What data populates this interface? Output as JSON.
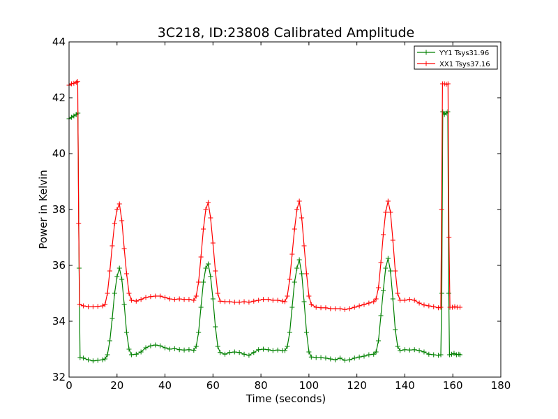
{
  "chart_data": {
    "type": "line",
    "title": "3C218, ID:23808 Calibrated Amplitude",
    "xlabel": "Time (seconds)",
    "ylabel": "Power in Kelvin",
    "xlim": [
      0,
      180
    ],
    "ylim": [
      32,
      44
    ],
    "xticks": [
      0,
      20,
      40,
      60,
      80,
      100,
      120,
      140,
      160,
      180
    ],
    "yticks": [
      32,
      34,
      36,
      38,
      40,
      42,
      44
    ],
    "grid": false,
    "legend_position": "top-right",
    "series": [
      {
        "name": "YY1 Tsys31.96",
        "color": "#008000",
        "segments": [
          [
            [
              0,
              41.25
            ],
            [
              1,
              41.3
            ],
            [
              2,
              41.35
            ],
            [
              3,
              41.4
            ],
            [
              3.7,
              41.45
            ],
            [
              4.2,
              35.9
            ],
            [
              4.6,
              32.7
            ],
            [
              6,
              32.68
            ],
            [
              8,
              32.62
            ],
            [
              10,
              32.58
            ],
            [
              12,
              32.6
            ],
            [
              14,
              32.62
            ],
            [
              15,
              32.65
            ],
            [
              16,
              32.8
            ],
            [
              17,
              33.3
            ],
            [
              18,
              34.1
            ],
            [
              19,
              35.0
            ],
            [
              20,
              35.6
            ],
            [
              21,
              35.9
            ],
            [
              22,
              35.5
            ],
            [
              23,
              34.6
            ],
            [
              24,
              33.6
            ],
            [
              25,
              33.0
            ],
            [
              26,
              32.8
            ],
            [
              28,
              32.82
            ],
            [
              30,
              32.9
            ],
            [
              32,
              33.05
            ],
            [
              34,
              33.12
            ],
            [
              36,
              33.15
            ],
            [
              38,
              33.12
            ],
            [
              40,
              33.05
            ],
            [
              42,
              33.0
            ],
            [
              44,
              33.02
            ],
            [
              46,
              32.98
            ],
            [
              48,
              32.97
            ],
            [
              50,
              32.98
            ],
            [
              52,
              32.96
            ],
            [
              53,
              33.1
            ],
            [
              54,
              33.6
            ],
            [
              55,
              34.5
            ],
            [
              56,
              35.4
            ],
            [
              57,
              35.9
            ],
            [
              58,
              36.05
            ],
            [
              59,
              35.6
            ],
            [
              60,
              34.8
            ],
            [
              61,
              33.8
            ],
            [
              62,
              33.1
            ],
            [
              63,
              32.88
            ],
            [
              65,
              32.82
            ],
            [
              67,
              32.88
            ],
            [
              69,
              32.9
            ],
            [
              71,
              32.88
            ],
            [
              73,
              32.82
            ],
            [
              75,
              32.78
            ],
            [
              77,
              32.88
            ],
            [
              79,
              32.98
            ],
            [
              81,
              33.0
            ],
            [
              83,
              32.98
            ],
            [
              85,
              32.95
            ],
            [
              87,
              32.97
            ],
            [
              89,
              32.95
            ],
            [
              90,
              32.95
            ],
            [
              91,
              33.1
            ],
            [
              92,
              33.6
            ],
            [
              93,
              34.5
            ],
            [
              94,
              35.4
            ],
            [
              95,
              35.9
            ],
            [
              96,
              36.2
            ],
            [
              97,
              35.7
            ],
            [
              98,
              34.7
            ],
            [
              99,
              33.6
            ],
            [
              100,
              32.9
            ],
            [
              101,
              32.72
            ],
            [
              103,
              32.7
            ],
            [
              105,
              32.7
            ],
            [
              107,
              32.68
            ],
            [
              109,
              32.65
            ],
            [
              111,
              32.62
            ],
            [
              113,
              32.68
            ],
            [
              115,
              32.6
            ],
            [
              117,
              32.62
            ],
            [
              119,
              32.68
            ],
            [
              121,
              32.72
            ],
            [
              123,
              32.75
            ],
            [
              125,
              32.8
            ],
            [
              127,
              32.82
            ],
            [
              128,
              32.9
            ],
            [
              129,
              33.3
            ],
            [
              130,
              34.2
            ],
            [
              131,
              35.1
            ],
            [
              132,
              35.9
            ],
            [
              133,
              36.25
            ],
            [
              134,
              35.8
            ],
            [
              135,
              34.8
            ],
            [
              136,
              33.7
            ],
            [
              137,
              33.1
            ],
            [
              138,
              32.95
            ],
            [
              140,
              32.98
            ],
            [
              142,
              32.97
            ],
            [
              144,
              32.98
            ],
            [
              146,
              32.95
            ],
            [
              148,
              32.9
            ],
            [
              150,
              32.82
            ],
            [
              152,
              32.8
            ],
            [
              154,
              32.78
            ],
            [
              155,
              32.8
            ],
            [
              155.4,
              35.0
            ],
            [
              155.8,
              41.5
            ],
            [
              156.5,
              41.4
            ],
            [
              157.3,
              41.45
            ],
            [
              157.9,
              41.5
            ],
            [
              158.3,
              35.0
            ],
            [
              158.6,
              32.8
            ],
            [
              159.5,
              32.82
            ],
            [
              160.5,
              32.85
            ],
            [
              161.5,
              32.8
            ],
            [
              162.5,
              32.82
            ],
            [
              163,
              32.8
            ]
          ]
        ]
      },
      {
        "name": "XX1 Tsys37.16",
        "color": "#ff0000",
        "segments": [
          [
            [
              0,
              42.45
            ],
            [
              1,
              42.5
            ],
            [
              2,
              42.52
            ],
            [
              3,
              42.55
            ],
            [
              3.6,
              42.58
            ],
            [
              4.0,
              37.5
            ],
            [
              4.4,
              34.6
            ],
            [
              6,
              34.55
            ],
            [
              8,
              34.52
            ],
            [
              10,
              34.52
            ],
            [
              12,
              34.53
            ],
            [
              14,
              34.55
            ],
            [
              15,
              34.6
            ],
            [
              16,
              35.0
            ],
            [
              17,
              35.8
            ],
            [
              18,
              36.7
            ],
            [
              19,
              37.5
            ],
            [
              20,
              38.0
            ],
            [
              21,
              38.2
            ],
            [
              22,
              37.6
            ],
            [
              23,
              36.6
            ],
            [
              24,
              35.7
            ],
            [
              25,
              35.0
            ],
            [
              26,
              34.75
            ],
            [
              28,
              34.72
            ],
            [
              30,
              34.78
            ],
            [
              32,
              34.85
            ],
            [
              34,
              34.88
            ],
            [
              36,
              34.9
            ],
            [
              38,
              34.9
            ],
            [
              40,
              34.85
            ],
            [
              42,
              34.8
            ],
            [
              44,
              34.78
            ],
            [
              46,
              34.8
            ],
            [
              48,
              34.78
            ],
            [
              50,
              34.78
            ],
            [
              52,
              34.75
            ],
            [
              53,
              34.9
            ],
            [
              54,
              35.4
            ],
            [
              55,
              36.3
            ],
            [
              56,
              37.3
            ],
            [
              57,
              38.0
            ],
            [
              58,
              38.25
            ],
            [
              59,
              37.7
            ],
            [
              60,
              36.8
            ],
            [
              61,
              35.8
            ],
            [
              62,
              35.0
            ],
            [
              63,
              34.72
            ],
            [
              65,
              34.7
            ],
            [
              67,
              34.7
            ],
            [
              69,
              34.68
            ],
            [
              71,
              34.68
            ],
            [
              73,
              34.7
            ],
            [
              75,
              34.68
            ],
            [
              77,
              34.72
            ],
            [
              79,
              34.75
            ],
            [
              81,
              34.78
            ],
            [
              83,
              34.78
            ],
            [
              85,
              34.75
            ],
            [
              87,
              34.75
            ],
            [
              89,
              34.72
            ],
            [
              90,
              34.7
            ],
            [
              91,
              34.9
            ],
            [
              92,
              35.5
            ],
            [
              93,
              36.4
            ],
            [
              94,
              37.3
            ],
            [
              95,
              38.0
            ],
            [
              96,
              38.3
            ],
            [
              97,
              37.7
            ],
            [
              98,
              36.7
            ],
            [
              99,
              35.7
            ],
            [
              100,
              34.9
            ],
            [
              101,
              34.6
            ],
            [
              103,
              34.5
            ],
            [
              105,
              34.48
            ],
            [
              107,
              34.48
            ],
            [
              109,
              34.45
            ],
            [
              111,
              34.45
            ],
            [
              113,
              34.45
            ],
            [
              115,
              34.42
            ],
            [
              117,
              34.45
            ],
            [
              119,
              34.5
            ],
            [
              121,
              34.55
            ],
            [
              123,
              34.6
            ],
            [
              125,
              34.65
            ],
            [
              127,
              34.7
            ],
            [
              128,
              34.8
            ],
            [
              129,
              35.2
            ],
            [
              130,
              36.1
            ],
            [
              131,
              37.1
            ],
            [
              132,
              37.9
            ],
            [
              133,
              38.3
            ],
            [
              134,
              37.9
            ],
            [
              135,
              36.9
            ],
            [
              136,
              35.8
            ],
            [
              137,
              35.0
            ],
            [
              138,
              34.75
            ],
            [
              140,
              34.75
            ],
            [
              142,
              34.78
            ],
            [
              144,
              34.75
            ],
            [
              146,
              34.65
            ],
            [
              148,
              34.58
            ],
            [
              150,
              34.55
            ],
            [
              152,
              34.52
            ],
            [
              154,
              34.48
            ],
            [
              155,
              34.5
            ],
            [
              155.3,
              38.0
            ],
            [
              155.7,
              42.5
            ],
            [
              156.5,
              42.5
            ],
            [
              157.3,
              42.48
            ],
            [
              158,
              42.5
            ],
            [
              158.4,
              37.0
            ],
            [
              158.8,
              34.5
            ],
            [
              159.8,
              34.5
            ],
            [
              160.8,
              34.52
            ],
            [
              161.8,
              34.5
            ],
            [
              163,
              34.5
            ]
          ]
        ]
      }
    ]
  }
}
